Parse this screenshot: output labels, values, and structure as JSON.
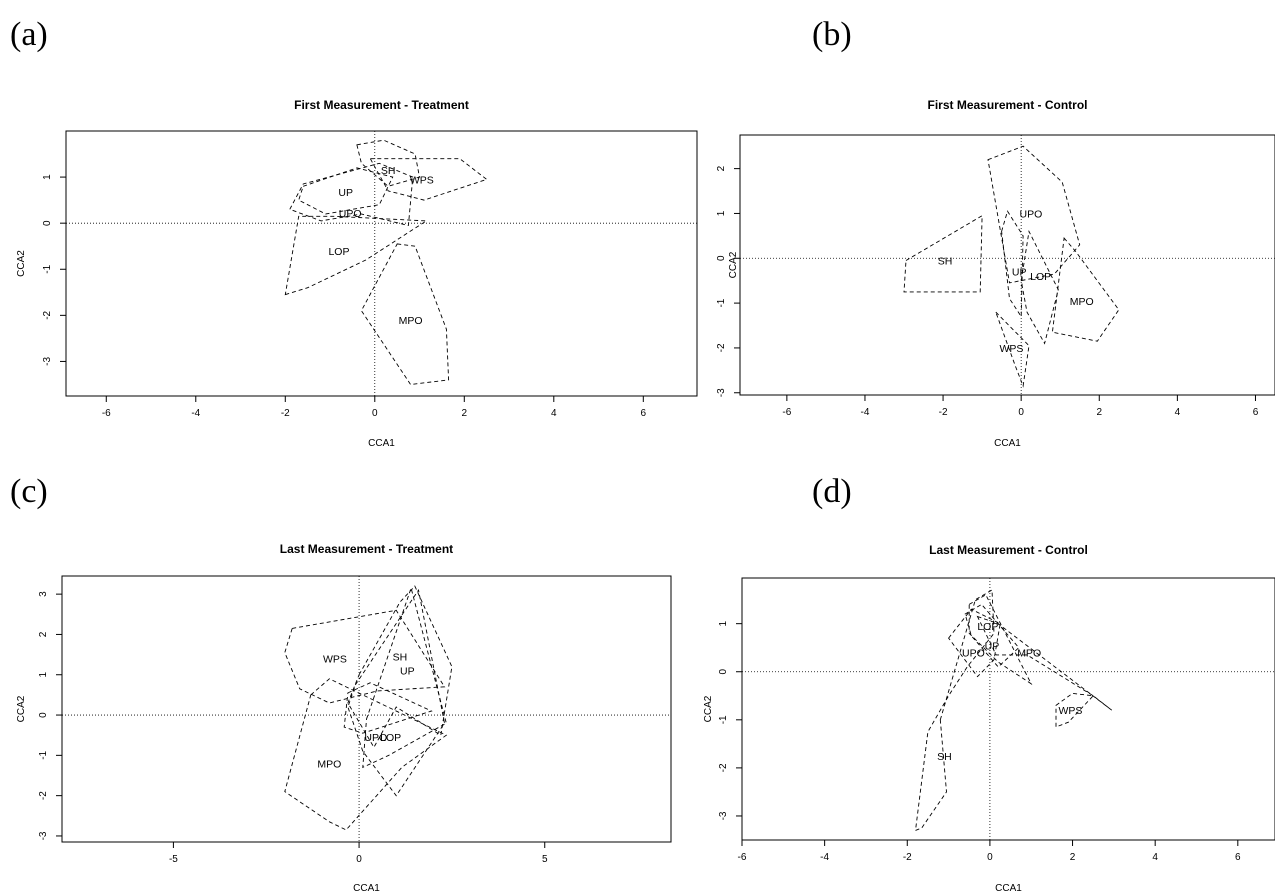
{
  "panel_letters": [
    "(a)",
    "(b)",
    "(c)",
    "(d)"
  ],
  "chart_data": [
    {
      "type": "scatter",
      "title": "First Measurement - Treatment",
      "xlabel": "CCA1",
      "ylabel": "CCA2",
      "xlim": [
        -6.9,
        7.2
      ],
      "ylim": [
        -3.75,
        2.0
      ],
      "xticks": [
        -6,
        -4,
        -2,
        0,
        2,
        4,
        6
      ],
      "yticks": [
        -3,
        -2,
        -1,
        0,
        1
      ],
      "grid": false,
      "reference_lines": {
        "x": 0,
        "y": 0
      },
      "groups": [
        {
          "name": "SH",
          "label_at": [
            0.3,
            1.15
          ],
          "hull": [
            [
              -0.4,
              1.7
            ],
            [
              0.2,
              1.8
            ],
            [
              0.9,
              1.5
            ],
            [
              1.0,
              1.0
            ],
            [
              0.3,
              0.8
            ],
            [
              -0.3,
              1.3
            ]
          ]
        },
        {
          "name": "WPS",
          "label_at": [
            1.05,
            0.95
          ],
          "hull": [
            [
              -0.1,
              1.4
            ],
            [
              1.9,
              1.4
            ],
            [
              2.5,
              0.95
            ],
            [
              1.1,
              0.5
            ],
            [
              0.3,
              0.7
            ]
          ]
        },
        {
          "name": "UP",
          "label_at": [
            -0.65,
            0.68
          ],
          "hull": [
            [
              -1.6,
              0.8
            ],
            [
              -0.4,
              1.2
            ],
            [
              0.4,
              1.0
            ],
            [
              0.1,
              0.4
            ],
            [
              -1.1,
              0.2
            ],
            [
              -1.7,
              0.5
            ]
          ]
        },
        {
          "name": "UPO",
          "label_at": [
            -0.55,
            0.22
          ],
          "hull": [
            [
              -1.9,
              0.3
            ],
            [
              -1.6,
              0.85
            ],
            [
              0.1,
              1.3
            ],
            [
              0.85,
              1.0
            ],
            [
              0.75,
              -0.05
            ],
            [
              -0.3,
              0.2
            ],
            [
              -1.2,
              0.05
            ]
          ]
        },
        {
          "name": "LOP",
          "label_at": [
            -0.8,
            -0.6
          ],
          "hull": [
            [
              -2.0,
              -1.55
            ],
            [
              -1.5,
              -1.4
            ],
            [
              -0.2,
              -0.8
            ],
            [
              1.15,
              0.05
            ],
            [
              -0.9,
              0.15
            ],
            [
              -1.7,
              0.15
            ]
          ]
        },
        {
          "name": "MPO",
          "label_at": [
            0.8,
            -2.1
          ],
          "hull": [
            [
              0.5,
              -0.45
            ],
            [
              0.9,
              -0.5
            ],
            [
              1.6,
              -2.3
            ],
            [
              1.65,
              -3.4
            ],
            [
              0.8,
              -3.5
            ],
            [
              -0.3,
              -1.9
            ]
          ]
        }
      ]
    },
    {
      "type": "scatter",
      "title": "First Measurement - Control",
      "xlabel": "CCA1",
      "ylabel": "CCA2",
      "xlim": [
        -7.2,
        6.5
      ],
      "ylim": [
        -3.05,
        2.75
      ],
      "xticks": [
        -6,
        -4,
        -2,
        0,
        2,
        4,
        6
      ],
      "yticks": [
        -3,
        -2,
        -1,
        0,
        1,
        2
      ],
      "grid": false,
      "reference_lines": {
        "x": 0,
        "y": 0
      },
      "groups": [
        {
          "name": "UPO",
          "label_at": [
            0.25,
            1.0
          ],
          "hull": [
            [
              -0.85,
              2.2
            ],
            [
              0.05,
              2.5
            ],
            [
              1.05,
              1.7
            ],
            [
              1.5,
              0.3
            ],
            [
              0.85,
              -0.35
            ],
            [
              -0.3,
              -0.55
            ]
          ]
        },
        {
          "name": "SH",
          "label_at": [
            -1.95,
            -0.05
          ],
          "hull": [
            [
              -2.95,
              -0.05
            ],
            [
              -1.0,
              0.95
            ],
            [
              -1.05,
              -0.75
            ],
            [
              -3.0,
              -0.75
            ]
          ]
        },
        {
          "name": "UP",
          "label_at": [
            -0.05,
            -0.3
          ],
          "hull": [
            [
              -0.5,
              0.6
            ],
            [
              -0.35,
              1.05
            ],
            [
              0.05,
              0.5
            ],
            [
              0.0,
              -1.3
            ],
            [
              -0.3,
              -0.9
            ]
          ]
        },
        {
          "name": "LOP",
          "label_at": [
            0.5,
            -0.4
          ],
          "hull": [
            [
              0.0,
              -0.5
            ],
            [
              0.2,
              0.6
            ],
            [
              0.95,
              -0.7
            ],
            [
              0.6,
              -1.9
            ],
            [
              0.15,
              -1.2
            ]
          ]
        },
        {
          "name": "MPO",
          "label_at": [
            1.55,
            -0.95
          ],
          "hull": [
            [
              1.1,
              0.45
            ],
            [
              1.4,
              0.15
            ],
            [
              2.5,
              -1.15
            ],
            [
              1.95,
              -1.85
            ],
            [
              0.8,
              -1.65
            ]
          ]
        },
        {
          "name": "WPS",
          "label_at": [
            -0.25,
            -2.0
          ],
          "hull": [
            [
              -0.65,
              -1.2
            ],
            [
              0.2,
              -1.95
            ],
            [
              0.05,
              -2.85
            ],
            [
              -0.15,
              -2.4
            ]
          ]
        }
      ]
    },
    {
      "type": "scatter",
      "title": "Last Measurement - Treatment",
      "xlabel": "CCA1",
      "ylabel": "CCA2",
      "xlim": [
        -8.0,
        8.4
      ],
      "ylim": [
        -3.15,
        3.45
      ],
      "xticks": [
        -5,
        0,
        5
      ],
      "yticks": [
        -3,
        -2,
        -1,
        0,
        1,
        2,
        3
      ],
      "grid": false,
      "reference_lines": {
        "x": 0,
        "y": 0
      },
      "groups": [
        {
          "name": "WPS",
          "label_at": [
            -0.65,
            1.4
          ],
          "hull": [
            [
              -1.8,
              2.15
            ],
            [
              1.0,
              2.6
            ],
            [
              2.3,
              0.7
            ],
            [
              0.5,
              0.6
            ],
            [
              -0.8,
              0.3
            ],
            [
              -1.6,
              0.65
            ],
            [
              -2.0,
              1.55
            ]
          ]
        },
        {
          "name": "SH",
          "label_at": [
            1.1,
            1.45
          ],
          "hull": [
            [
              0.0,
              1.0
            ],
            [
              1.1,
              2.8
            ],
            [
              1.5,
              3.2
            ],
            [
              2.5,
              1.2
            ],
            [
              2.2,
              -0.5
            ],
            [
              1.0,
              0.2
            ],
            [
              0.4,
              -0.8
            ],
            [
              -0.3,
              0.3
            ]
          ]
        },
        {
          "name": "UP",
          "label_at": [
            1.3,
            1.1
          ],
          "hull": [
            [
              -0.1,
              0.75
            ],
            [
              1.6,
              3.1
            ],
            [
              2.3,
              -0.2
            ],
            [
              1.0,
              -2.0
            ],
            [
              0.1,
              -0.9
            ],
            [
              -0.3,
              0.2
            ]
          ]
        },
        {
          "name": "UPO",
          "label_at": [
            0.45,
            -0.55
          ],
          "hull": [
            [
              -0.3,
              0.55
            ],
            [
              0.3,
              0.8
            ],
            [
              1.95,
              0.1
            ],
            [
              0.1,
              -0.45
            ],
            [
              -0.4,
              -0.3
            ]
          ]
        },
        {
          "name": "LOP",
          "label_at": [
            0.85,
            -0.55
          ],
          "hull": [
            [
              0.2,
              -0.1
            ],
            [
              1.4,
              3.15
            ],
            [
              2.35,
              -0.2
            ],
            [
              0.8,
              -1.0
            ],
            [
              0.1,
              -1.3
            ]
          ]
        },
        {
          "name": "MPO",
          "label_at": [
            -0.8,
            -1.2
          ],
          "hull": [
            [
              -1.3,
              0.5
            ],
            [
              -0.8,
              0.9
            ],
            [
              2.35,
              -0.5
            ],
            [
              1.15,
              -1.3
            ],
            [
              -0.35,
              -2.85
            ],
            [
              -0.8,
              -2.65
            ],
            [
              -2.0,
              -1.9
            ]
          ]
        }
      ]
    },
    {
      "type": "scatter",
      "title": "Last Measurement - Control",
      "xlabel": "CCA1",
      "ylabel": "CCA2",
      "xlim": [
        -6.0,
        6.9
      ],
      "ylim": [
        -3.5,
        1.95
      ],
      "xticks": [
        -6,
        -4,
        -2,
        0,
        2,
        4,
        6
      ],
      "yticks": [
        -3,
        -2,
        -1,
        0,
        1
      ],
      "grid": false,
      "reference_lines": {
        "x": 0,
        "y": 0
      },
      "groups": [
        {
          "name": "LOP",
          "label_at": [
            -0.05,
            0.95
          ],
          "hull": [
            [
              -0.6,
              1.2
            ],
            [
              -0.2,
              1.4
            ],
            [
              0.7,
              0.5
            ],
            [
              0.2,
              0.1
            ],
            [
              -0.45,
              0.75
            ]
          ]
        },
        {
          "name": "UP",
          "label_at": [
            0.05,
            0.55
          ],
          "hull": [
            [
              -0.5,
              1.4
            ],
            [
              -0.1,
              1.6
            ],
            [
              1.0,
              -0.25
            ],
            [
              0.2,
              0.2
            ],
            [
              -0.5,
              0.8
            ]
          ]
        },
        {
          "name": "UPO",
          "label_at": [
            -0.4,
            0.4
          ],
          "hull": [
            [
              -1.0,
              0.7
            ],
            [
              -0.45,
              1.3
            ],
            [
              0.25,
              1.0
            ],
            [
              0.1,
              0.25
            ],
            [
              -0.3,
              -0.1
            ]
          ]
        },
        {
          "name": "MPO",
          "label_at": [
            0.95,
            0.4
          ],
          "hull": [
            [
              -0.3,
              1.15
            ],
            [
              0.2,
              1.0
            ],
            [
              2.95,
              -0.8
            ],
            [
              2.5,
              -0.5
            ],
            [
              0.9,
              0.35
            ],
            [
              0.15,
              0.35
            ]
          ]
        },
        {
          "name": "WPS",
          "label_at": [
            1.95,
            -0.8
          ],
          "hull": [
            [
              1.6,
              -0.7
            ],
            [
              2.0,
              -0.45
            ],
            [
              2.5,
              -0.5
            ],
            [
              1.9,
              -1.05
            ],
            [
              1.6,
              -1.15
            ]
          ]
        },
        {
          "name": "SH",
          "label_at": [
            -1.1,
            -1.75
          ],
          "hull": [
            [
              -1.2,
              -1.0
            ],
            [
              -0.35,
              1.5
            ],
            [
              0.05,
              1.7
            ],
            [
              0.1,
              0.8
            ],
            [
              -0.55,
              0.1
            ],
            [
              -1.0,
              -0.5
            ],
            [
              -1.5,
              -1.25
            ],
            [
              -1.8,
              -3.3
            ],
            [
              -1.65,
              -3.25
            ],
            [
              -1.05,
              -2.5
            ]
          ]
        }
      ]
    }
  ]
}
